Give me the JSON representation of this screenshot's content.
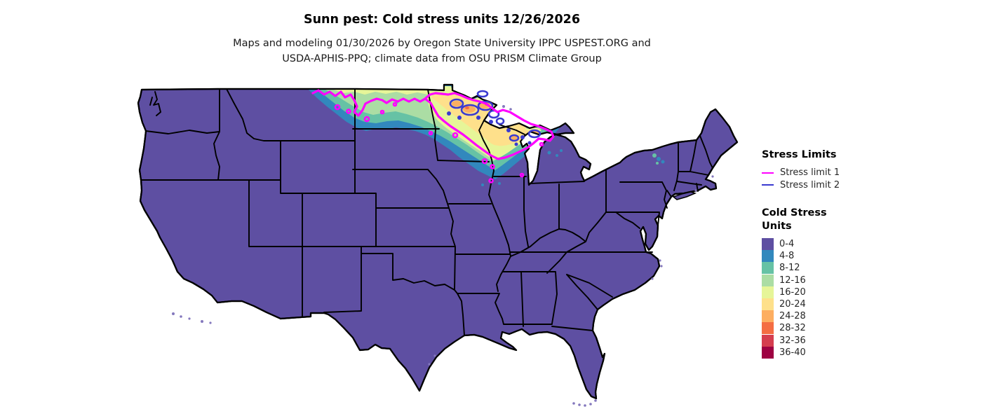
{
  "title": "Sunn pest: Cold stress units 12/26/2026",
  "subtitle_line1": "Maps and modeling 01/30/2026 by Oregon State University IPPC USPEST.ORG and",
  "subtitle_line2": "USDA-APHIS-PPQ; climate data from OSU PRISM Climate Group",
  "legend": {
    "stress_limits": {
      "title": "Stress Limits",
      "items": [
        {
          "label": "Stress limit 1",
          "color": "#ff00ff"
        },
        {
          "label": "Stress limit 2",
          "color": "#3a3ad0"
        }
      ]
    },
    "cold_stress": {
      "title_line1": "Cold Stress",
      "title_line2": "Units",
      "classes": [
        {
          "label": "0-4",
          "color": "#5e4fa2"
        },
        {
          "label": "4-8",
          "color": "#3288bd"
        },
        {
          "label": "8-12",
          "color": "#66c2a5"
        },
        {
          "label": "12-16",
          "color": "#abdda4"
        },
        {
          "label": "16-20",
          "color": "#e6f598"
        },
        {
          "label": "20-24",
          "color": "#fee08b"
        },
        {
          "label": "24-28",
          "color": "#fdae61"
        },
        {
          "label": "28-32",
          "color": "#f46d43"
        },
        {
          "label": "32-36",
          "color": "#d53e4f"
        },
        {
          "label": "36-40",
          "color": "#9e0142"
        }
      ]
    }
  }
}
